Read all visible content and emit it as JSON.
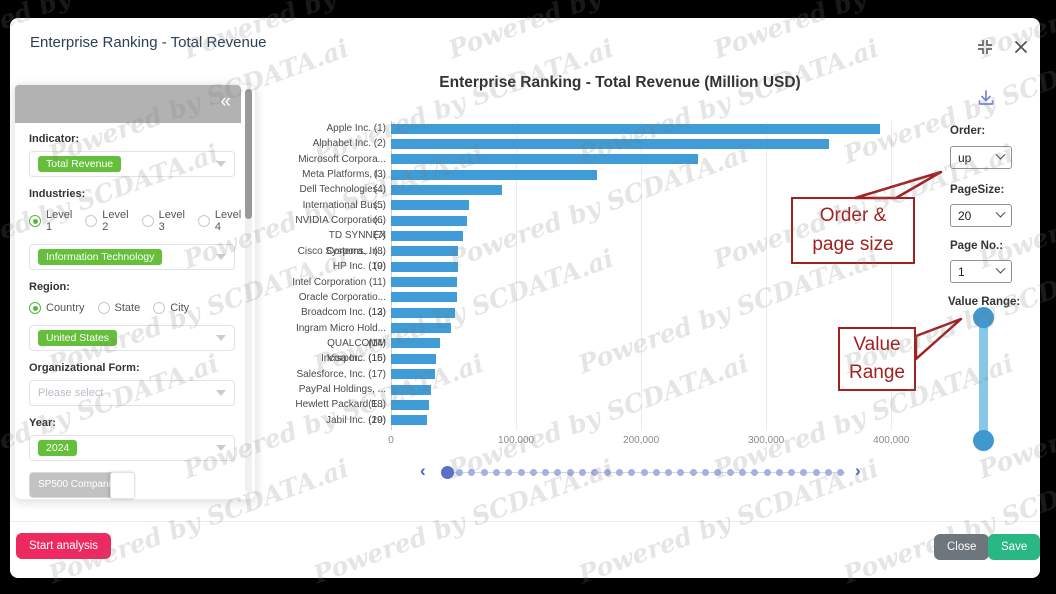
{
  "watermark": {
    "text": "Powered by SCDATA.ai"
  },
  "modal": {
    "title": "Enterprise Ranking - Total Revenue"
  },
  "icons": {
    "collapse": "«",
    "chevron_left": "‹",
    "chevron_right": "›"
  },
  "colors": {
    "bar": "#3f9cd6",
    "tag_green": "#65bf3b",
    "start_pink": "#ec2a5f",
    "save_green": "#29b884",
    "close_gray": "#6e767d",
    "annotation_red": "#a32020",
    "dot": "#a4b0de",
    "dot_active": "#5b6ec8",
    "chevron_blue": "#4365c8",
    "slider_track": "#85c8e8",
    "slider_handle": "#3f98cf",
    "download_icon": "#7286d6"
  },
  "sidebar": {
    "indicator": {
      "label": "Indicator:",
      "value": "Total Revenue"
    },
    "industries": {
      "label": "Industries:",
      "options": [
        "Level 1",
        "Level 2",
        "Level 3",
        "Level 4"
      ],
      "selected": "Level 1",
      "value": "Information Technology"
    },
    "region": {
      "label": "Region:",
      "options": [
        "Country",
        "State",
        "City"
      ],
      "selected": "Country",
      "value": "United States"
    },
    "organizational_form": {
      "label": "Organizational Form:",
      "placeholder": "Please select"
    },
    "year": {
      "label": "Year:",
      "value": "2024"
    },
    "sp500_toggle_label": "SP500 Companies",
    "start_button": "Start analysis"
  },
  "controls": {
    "order": {
      "label": "Order:",
      "value": "up"
    },
    "page_size": {
      "label": "PageSize:",
      "value": "20"
    },
    "page_no": {
      "label": "Page No.:",
      "value": "1"
    },
    "value_range_label": "Value Range:"
  },
  "annotations": {
    "order_page": {
      "line1": "Order &",
      "line2": "page size"
    },
    "value_range": {
      "line1": "Value",
      "line2": "Range"
    }
  },
  "footer": {
    "close": "Close",
    "save": "Save"
  },
  "pagination": {
    "total": 33,
    "active_index": 0
  },
  "chart_data": {
    "type": "bar",
    "orientation": "horizontal",
    "title": "Enterprise Ranking - Total Revenue (Million USD)",
    "categories": [
      "Apple Inc. (1)",
      "Alphabet Inc. (2)",
      "Microsoft Corpora... (3)",
      "Meta Platforms, I... (4)",
      "Dell Technologies... (5)",
      "International Bus... (6)",
      "NVIDIA Corporatio... (7)",
      "TD SYNNEX Corpora... (8)",
      "Cisco Systems, In... (9)",
      "HP Inc. (10)",
      "Intel Corporation (11)",
      "Oracle Corporatio... (12)",
      "Broadcom Inc. (13)",
      "Ingram Micro Hold... (14)",
      "QUALCOMM Incorpor... (15)",
      "Visa Inc. (16)",
      "Salesforce, Inc. (17)",
      "PayPal Holdings, ... (18)",
      "Hewlett Packard E... (19)",
      "Jabil Inc. (20)"
    ],
    "values": [
      391035,
      350018,
      245122,
      164501,
      88425,
      62753,
      60922,
      57555,
      53803,
      53559,
      53101,
      52961,
      51574,
      48041,
      38962,
      35926,
      34857,
      31797,
      30127,
      28883
    ],
    "xlabel": "",
    "ylabel": "",
    "xlim": [
      0,
      443000
    ],
    "xticks": {
      "values": [
        0,
        100000,
        200000,
        300000,
        400000
      ],
      "labels": [
        "0",
        "100,000",
        "200,000",
        "300,000",
        "400,000"
      ]
    },
    "grid": true,
    "legend": false
  }
}
